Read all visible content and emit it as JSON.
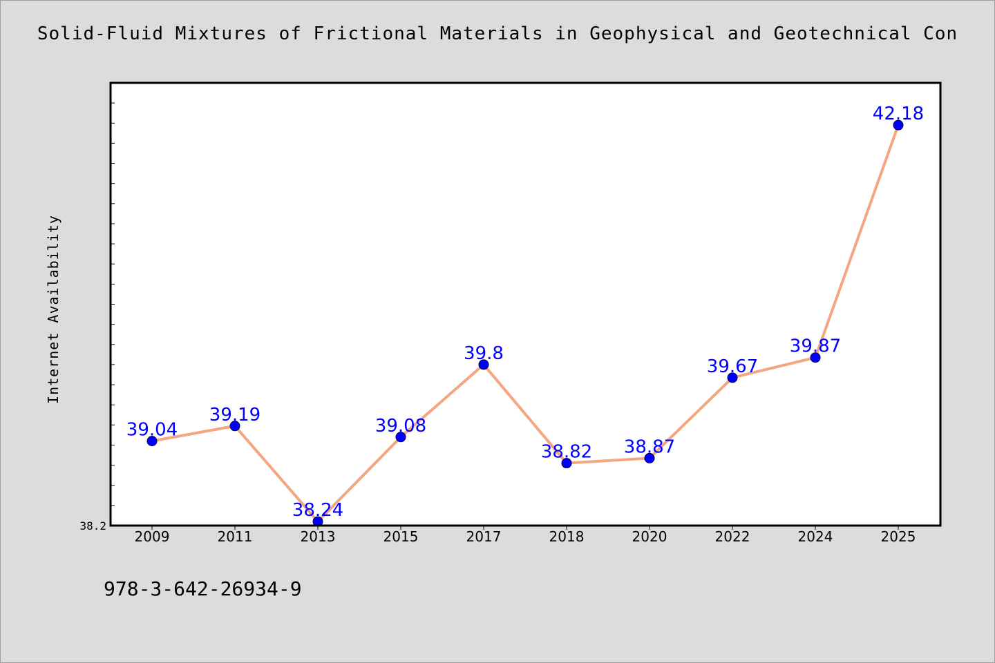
{
  "chart_data": {
    "type": "line",
    "title": "Solid-Fluid Mixtures of Frictional Materials in Geophysical and Geotechnical Con",
    "xlabel": "",
    "ylabel": "Internet Availability",
    "categories": [
      "2009",
      "2011",
      "2013",
      "2015",
      "2017",
      "2018",
      "2020",
      "2022",
      "2024",
      "2025"
    ],
    "series": [
      {
        "values": [
          39.04,
          39.19,
          38.24,
          39.08,
          39.8,
          38.82,
          38.87,
          39.67,
          39.87,
          42.18
        ],
        "labels": [
          "39.04",
          "39.19",
          "38.24",
          "39.08",
          "39.8",
          "38.82",
          "38.87",
          "39.67",
          "39.87",
          "42.18"
        ],
        "line_color": "#f4a582",
        "marker_color": "#0000ff",
        "label_color": "#0000ff"
      }
    ],
    "ylim": [
      38.2,
      42.6
    ],
    "y_tick_labels": [
      "38.2"
    ],
    "grid": false
  },
  "footer": {
    "isbn": "978-3-642-26934-9"
  },
  "colors": {
    "background": "#dcdcdc",
    "plot_background": "#ffffff",
    "axis": "#000000"
  }
}
